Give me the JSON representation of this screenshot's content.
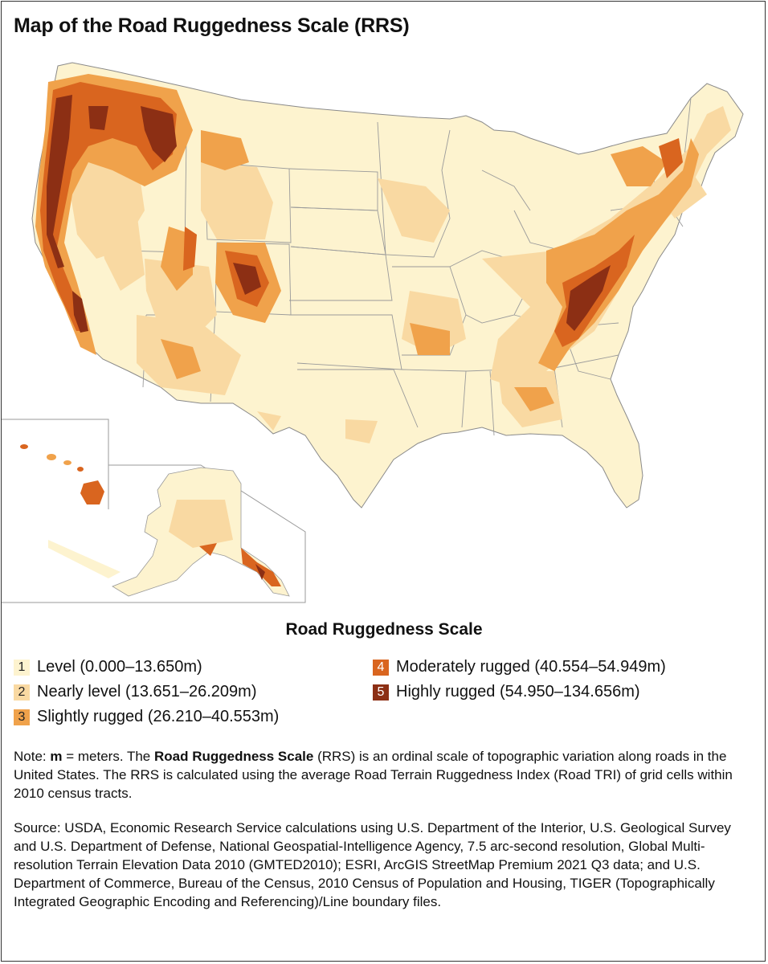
{
  "title": "Map of the Road Ruggedness Scale (RRS)",
  "legend": {
    "title": "Road Ruggedness Scale",
    "items": [
      {
        "num": "1",
        "label": "Level (0.000–13.650m)",
        "color": "#fdf3cf",
        "text_color": "#222222"
      },
      {
        "num": "2",
        "label": "Nearly level (13.651–26.209m)",
        "color": "#f9d9a2",
        "text_color": "#222222"
      },
      {
        "num": "3",
        "label": "Slightly rugged (26.210–40.553m)",
        "color": "#f0a24b",
        "text_color": "#222222"
      },
      {
        "num": "4",
        "label": "Moderately rugged (40.554–54.949m)",
        "color": "#d9651f",
        "text_color": "#ffffff"
      },
      {
        "num": "5",
        "label": "Highly rugged (54.950–134.656m)",
        "color": "#8c2f14",
        "text_color": "#ffffff"
      }
    ]
  },
  "note": {
    "prefix": "Note: ",
    "m": "m",
    "m_def": " = meters. The ",
    "rrs": "Road Ruggedness Scale",
    "rest": " (RRS) is an ordinal scale of topographic variation along roads in the United States. The RRS is calculated using the average Road Terrain Ruggedness Index (Road TRI) of grid cells within 2010 census tracts."
  },
  "source": "Source: USDA, Economic Research Service calculations using U.S. Department of the Interior, U.S. Geological Survey and U.S. Department of Defense, National Geospatial-Intelligence Agency, 7.5 arc-second resolution, Global Multi-resolution Terrain Elevation Data 2010 (GMTED2010); ESRI, ArcGIS StreetMap Premium 2021 Q3 data; and U.S. Department of Commerce, Bureau of the Census, 2010 Census of Population and Housing, TIGER (Topographically Integrated Geographic Encoding and Referencing)/Line boundary files.",
  "colors": {
    "level1": "#fdf3cf",
    "level2": "#f9d9a2",
    "level3": "#f0a24b",
    "level4": "#d9651f",
    "level5": "#8c2f14",
    "state_border": "#9a9a9a"
  }
}
